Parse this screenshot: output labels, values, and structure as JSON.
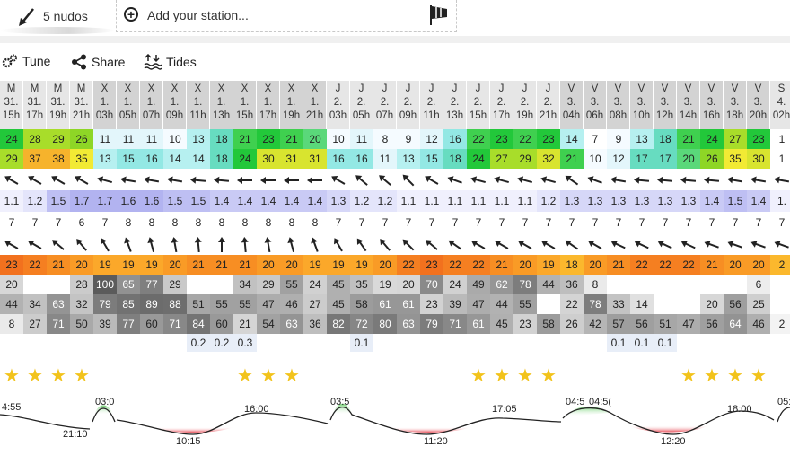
{
  "header": {
    "wind_label": "5 nudos",
    "station_placeholder": "Add your station..."
  },
  "toolbar": {
    "tune": "Tune",
    "share": "Share",
    "tides": "Tides"
  },
  "columns": [
    {
      "d": "M",
      "n": "31.",
      "h": "15h"
    },
    {
      "d": "M",
      "n": "31.",
      "h": "17h"
    },
    {
      "d": "M",
      "n": "31.",
      "h": "19h"
    },
    {
      "d": "M",
      "n": "31.",
      "h": "21h"
    },
    {
      "d": "X",
      "n": "1.",
      "h": "03h"
    },
    {
      "d": "X",
      "n": "1.",
      "h": "05h"
    },
    {
      "d": "X",
      "n": "1.",
      "h": "07h"
    },
    {
      "d": "X",
      "n": "1.",
      "h": "09h"
    },
    {
      "d": "X",
      "n": "1.",
      "h": "11h"
    },
    {
      "d": "X",
      "n": "1.",
      "h": "13h"
    },
    {
      "d": "X",
      "n": "1.",
      "h": "15h"
    },
    {
      "d": "X",
      "n": "1.",
      "h": "17h"
    },
    {
      "d": "X",
      "n": "1.",
      "h": "19h"
    },
    {
      "d": "X",
      "n": "1.",
      "h": "21h"
    },
    {
      "d": "J",
      "n": "2.",
      "h": "03h"
    },
    {
      "d": "J",
      "n": "2.",
      "h": "05h"
    },
    {
      "d": "J",
      "n": "2.",
      "h": "07h"
    },
    {
      "d": "J",
      "n": "2.",
      "h": "09h"
    },
    {
      "d": "J",
      "n": "2.",
      "h": "11h"
    },
    {
      "d": "J",
      "n": "2.",
      "h": "13h"
    },
    {
      "d": "J",
      "n": "2.",
      "h": "15h"
    },
    {
      "d": "J",
      "n": "2.",
      "h": "17h"
    },
    {
      "d": "J",
      "n": "2.",
      "h": "19h"
    },
    {
      "d": "J",
      "n": "2.",
      "h": "21h"
    },
    {
      "d": "V",
      "n": "3.",
      "h": "04h"
    },
    {
      "d": "V",
      "n": "3.",
      "h": "06h"
    },
    {
      "d": "V",
      "n": "3.",
      "h": "08h"
    },
    {
      "d": "V",
      "n": "3.",
      "h": "10h"
    },
    {
      "d": "V",
      "n": "3.",
      "h": "12h"
    },
    {
      "d": "V",
      "n": "3.",
      "h": "14h"
    },
    {
      "d": "V",
      "n": "3.",
      "h": "16h"
    },
    {
      "d": "V",
      "n": "3.",
      "h": "18h"
    },
    {
      "d": "V",
      "n": "3.",
      "h": "20h"
    },
    {
      "d": "S",
      "n": "4.",
      "h": "02h"
    }
  ],
  "wind_speed": [
    "24",
    "28",
    "29",
    "26",
    "11",
    "11",
    "11",
    "10",
    "13",
    "18",
    "21",
    "23",
    "21",
    "20",
    "10",
    "11",
    "8",
    "9",
    "12",
    "16",
    "22",
    "23",
    "22",
    "23",
    "14",
    "7",
    "9",
    "13",
    "18",
    "21",
    "24",
    "27",
    "23",
    "1"
  ],
  "wind_gust": [
    "29",
    "37",
    "38",
    "35",
    "13",
    "15",
    "16",
    "14",
    "14",
    "18",
    "24",
    "30",
    "31",
    "31",
    "16",
    "16",
    "11",
    "13",
    "15",
    "18",
    "24",
    "27",
    "29",
    "32",
    "21",
    "10",
    "12",
    "17",
    "17",
    "20",
    "26",
    "35",
    "30",
    "1"
  ],
  "wind_dir_deg": [
    300,
    300,
    300,
    300,
    285,
    280,
    280,
    280,
    275,
    275,
    270,
    270,
    270,
    270,
    300,
    310,
    310,
    315,
    300,
    290,
    285,
    285,
    285,
    285,
    305,
    290,
    280,
    275,
    275,
    275,
    275,
    280,
    280,
    280
  ],
  "wave_height": [
    "1.1",
    "1.2",
    "1.5",
    "1.7",
    "1.7",
    "1.6",
    "1.6",
    "1.5",
    "1.5",
    "1.4",
    "1.4",
    "1.4",
    "1.4",
    "1.4",
    "1.3",
    "1.2",
    "1.2",
    "1.1",
    "1.1",
    "1.1",
    "1.1",
    "1.1",
    "1.1",
    "1.2",
    "1.3",
    "1.3",
    "1.3",
    "1.3",
    "1.3",
    "1.3",
    "1.4",
    "1.5",
    "1.4",
    "1."
  ],
  "wave_period": [
    "7",
    "7",
    "7",
    "6",
    "7",
    "8",
    "8",
    "8",
    "8",
    "8",
    "8",
    "8",
    "8",
    "8",
    "7",
    "7",
    "7",
    "7",
    "7",
    "7",
    "7",
    "7",
    "7",
    "7",
    "7",
    "7",
    "7",
    "7",
    "7",
    "7",
    "7",
    "7",
    "7",
    "7"
  ],
  "wave_dir_deg": [
    300,
    300,
    310,
    320,
    330,
    340,
    345,
    350,
    355,
    0,
    355,
    350,
    345,
    340,
    330,
    325,
    320,
    315,
    310,
    305,
    300,
    300,
    300,
    300,
    305,
    300,
    295,
    295,
    295,
    295,
    290,
    290,
    290,
    290
  ],
  "temperature": [
    "23",
    "22",
    "21",
    "20",
    "19",
    "19",
    "19",
    "20",
    "21",
    "21",
    "21",
    "20",
    "20",
    "19",
    "19",
    "19",
    "20",
    "22",
    "23",
    "22",
    "22",
    "21",
    "20",
    "19",
    "18",
    "20",
    "21",
    "22",
    "22",
    "22",
    "21",
    "20",
    "20",
    "2"
  ],
  "cloud_high": [
    "20",
    "",
    "",
    "28",
    "100",
    "65",
    "77",
    "29",
    "",
    "",
    "34",
    "29",
    "55",
    "24",
    "45",
    "35",
    "19",
    "20",
    "70",
    "24",
    "49",
    "62",
    "78",
    "44",
    "36",
    "8",
    "",
    "",
    "",
    "",
    "",
    "",
    "6",
    ""
  ],
  "cloud_mid": [
    "44",
    "34",
    "63",
    "32",
    "79",
    "85",
    "89",
    "88",
    "51",
    "55",
    "55",
    "47",
    "46",
    "27",
    "45",
    "58",
    "61",
    "61",
    "23",
    "39",
    "47",
    "44",
    "55",
    "",
    "22",
    "78",
    "33",
    "14",
    "",
    "",
    "20",
    "56",
    "25",
    ""
  ],
  "cloud_low": [
    "8",
    "27",
    "71",
    "50",
    "39",
    "77",
    "60",
    "71",
    "84",
    "60",
    "21",
    "54",
    "63",
    "36",
    "82",
    "72",
    "80",
    "63",
    "79",
    "71",
    "61",
    "45",
    "23",
    "58",
    "26",
    "42",
    "57",
    "56",
    "51",
    "47",
    "56",
    "64",
    "46",
    "2"
  ],
  "rain": [
    "",
    "",
    "",
    "",
    "",
    "",
    "",
    "",
    "0.2",
    "0.2",
    "0.3",
    "",
    "",
    "",
    "",
    "0.1",
    "",
    "",
    "",
    "",
    "",
    "",
    "",
    "",
    "",
    "",
    "0.1",
    "0.1",
    "0.1",
    "",
    "",
    "",
    "",
    ""
  ],
  "stars": [
    1,
    1,
    1,
    1,
    0,
    0,
    0,
    0,
    0,
    0,
    1,
    1,
    1,
    0,
    0,
    0,
    0,
    0,
    0,
    0,
    1,
    1,
    1,
    1,
    0,
    0,
    0,
    0,
    0,
    1,
    1,
    1,
    1,
    0
  ],
  "tide_labels": [
    {
      "t": "4:55",
      "k": "high"
    },
    {
      "t": "21:10",
      "k": "low"
    },
    {
      "t": "03:0",
      "k": "high"
    },
    {
      "t": "10:15",
      "k": "low"
    },
    {
      "t": "16:00",
      "k": "high"
    },
    {
      "t": "03:5",
      "k": "high"
    },
    {
      "t": "11:20",
      "k": "low"
    },
    {
      "t": "17:05",
      "k": "high"
    },
    {
      "t": "04:5",
      "k": "high"
    },
    {
      "t": "04:5(",
      "k": "high"
    },
    {
      "t": "12:20",
      "k": "low"
    },
    {
      "t": "18:00",
      "k": "high"
    },
    {
      "t": "05:",
      "k": "high"
    }
  ]
}
